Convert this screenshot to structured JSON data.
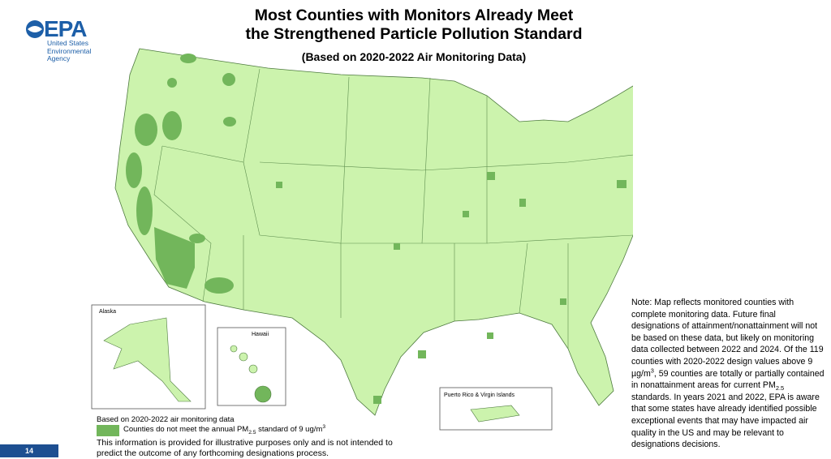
{
  "header": {
    "logo": {
      "mark": "EPA",
      "lines": [
        "United States",
        "Environmental",
        "Agency"
      ]
    },
    "title_lines": [
      "Most Counties with Monitors Already Meet",
      "the Strengthened Particle Pollution Standard"
    ],
    "subtitle": "(Based on 2020-2022 Air Monitoring Data)"
  },
  "map": {
    "insets": [
      "Alaska",
      "Hawaii",
      "Puerto Rico & Virgin Islands"
    ]
  },
  "legend": {
    "caption": "Based on 2020-2022 air monitoring data",
    "item": [
      "Counties do not meet the annual PM",
      "2.5",
      " standard of 9 ug/m",
      "3"
    ]
  },
  "disclaimer": [
    "This information is provided for illustrative purposes only and is not intended to",
    "predict the outcome of any forthcoming designations process."
  ],
  "note": [
    "Note:  Map reflects monitored counties with complete monitoring data. Future final designations of attainment/nonattainment will not be based on these data, but likely on monitoring data collected between 2022 and 2024. Of the 119 counties with 2020-2022 design values above 9 µg/m",
    "3",
    ", 59 counties are totally or partially contained in nonattainment areas for current PM",
    "2.5",
    " standards. In years 2021 and 2022, EPA is aware that some states have already identified possible exceptional events that may have impacted air quality in the US and may be relevant to designations decisions."
  ],
  "page_number": "14"
}
